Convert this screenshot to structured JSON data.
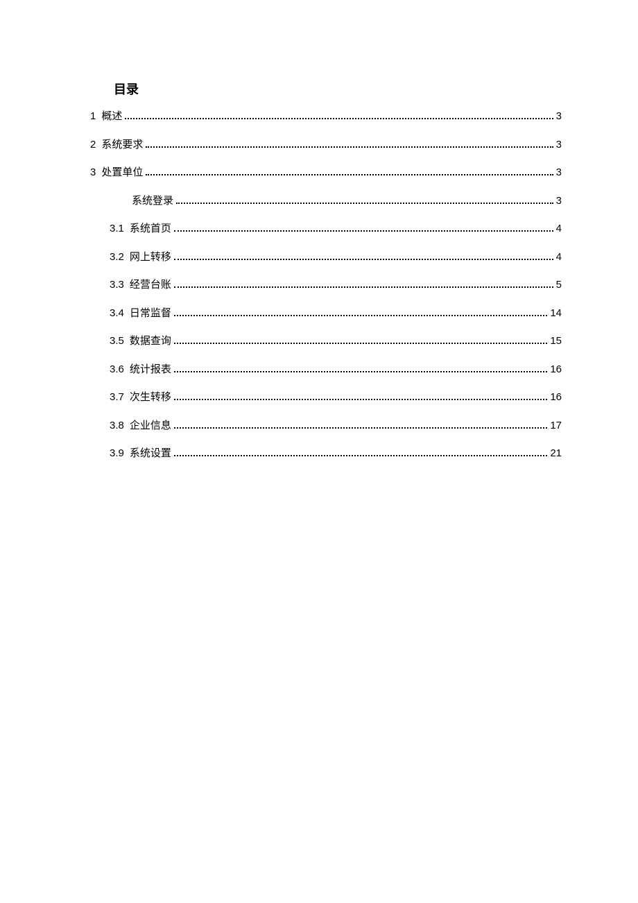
{
  "title": "目录",
  "entries": [
    {
      "level": 1,
      "number": "1",
      "text": "概述",
      "page": "3"
    },
    {
      "level": 1,
      "number": "2",
      "text": "系统要求",
      "page": "3"
    },
    {
      "level": 1,
      "number": "3",
      "text": "处置单位",
      "page": "3"
    },
    {
      "level": 2,
      "number": "",
      "text": "系统登录",
      "page": "3"
    },
    {
      "level": 2,
      "number": "3.1",
      "text": "系统首页",
      "page": "4"
    },
    {
      "level": 2,
      "number": "3.2",
      "text": "网上转移",
      "page": "4"
    },
    {
      "level": 2,
      "number": "3.3",
      "text": "经营台账",
      "page": "5"
    },
    {
      "level": 2,
      "number": "3.4",
      "text": "日常监督",
      "page": "14"
    },
    {
      "level": 2,
      "number": "3.5",
      "text": "数据查询",
      "page": "15"
    },
    {
      "level": 2,
      "number": "3.6",
      "text": "统计报表",
      "page": "16"
    },
    {
      "level": 2,
      "number": "3.7",
      "text": "次生转移",
      "page": "16"
    },
    {
      "level": 2,
      "number": "3.8",
      "text": "企业信息",
      "page": "17"
    },
    {
      "level": 2,
      "number": "3.9",
      "text": "系统设置",
      "page": "21"
    }
  ]
}
